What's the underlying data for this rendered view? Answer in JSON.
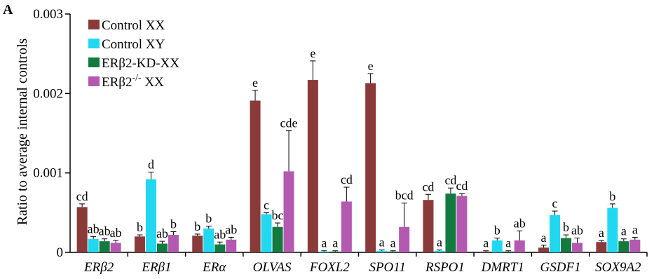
{
  "panel_label": "A",
  "chart_data": {
    "type": "bar",
    "ylabel": "Ratio to average internal controls",
    "ylim": [
      0,
      0.003
    ],
    "yticks": [
      "0",
      "0.001",
      "0.002",
      "0.003"
    ],
    "ytick_values": [
      0,
      0.001,
      0.002,
      0.003
    ],
    "categories": [
      "ERβ2",
      "ERβ1",
      "ERα",
      "OLVAS",
      "FOXL2",
      "SPO11",
      "RSPO1",
      "DMRT1",
      "GSDF1",
      "SOX9A2"
    ],
    "legend_position": "top-left",
    "grid": false,
    "series": [
      {
        "name": "Control XX",
        "color": "#8B3A3A",
        "values": [
          0.00057,
          0.0002,
          0.00021,
          0.00191,
          0.00217,
          0.00213,
          0.00066,
          1e-05,
          6e-05,
          0.00013
        ],
        "errors": [
          4e-05,
          2e-05,
          2e-05,
          0.00013,
          0.00024,
          0.00012,
          7e-05,
          1e-05,
          3e-05,
          2e-05
        ],
        "labels": [
          "cd",
          "b",
          "b",
          "e",
          "e",
          "e",
          "cd",
          "a",
          "a",
          "a"
        ]
      },
      {
        "name": "Control XY",
        "color": "#22D8F0",
        "values": [
          0.00017,
          0.00092,
          0.0003,
          0.00048,
          1e-05,
          2e-05,
          2e-05,
          0.00015,
          0.00047,
          0.00056
        ],
        "errors": [
          3e-05,
          9e-05,
          3e-05,
          2e-05,
          1e-05,
          1e-05,
          1e-05,
          3e-05,
          5e-05,
          5e-05
        ],
        "labels": [
          "ab",
          "d",
          "b",
          "c",
          "a",
          "a",
          "a",
          "b",
          "c",
          "b"
        ]
      },
      {
        "name": "ERβ2-KD-XX",
        "color": "#127A3F",
        "values": [
          0.00014,
          0.00011,
          0.0001,
          0.00032,
          1e-05,
          1e-05,
          0.00074,
          1e-05,
          0.00018,
          0.00014
        ],
        "errors": [
          3e-05,
          3e-05,
          3e-05,
          5e-05,
          1e-05,
          1e-05,
          7e-05,
          1e-05,
          4e-05,
          3e-05
        ],
        "labels": [
          "ab",
          "ab",
          "ab",
          "bc",
          "a",
          "a",
          "cd",
          "a",
          "b",
          "a"
        ]
      },
      {
        "name": "ERβ2",
        "name_sup": "-/-",
        "name_tail": " XX",
        "color": "#B35AB0",
        "values": [
          0.00012,
          0.00022,
          0.00016,
          0.00102,
          0.00064,
          0.00032,
          0.00071,
          0.00015,
          0.00012,
          0.00016
        ],
        "errors": [
          3e-05,
          4e-05,
          3e-05,
          0.00051,
          0.00018,
          0.0003,
          3e-05,
          0.00012,
          6e-05,
          3e-05
        ],
        "labels": [
          "ab",
          "b",
          "ab",
          "cde",
          "cd",
          "bcd",
          "cd",
          "ab",
          "ab",
          "a"
        ]
      }
    ]
  }
}
